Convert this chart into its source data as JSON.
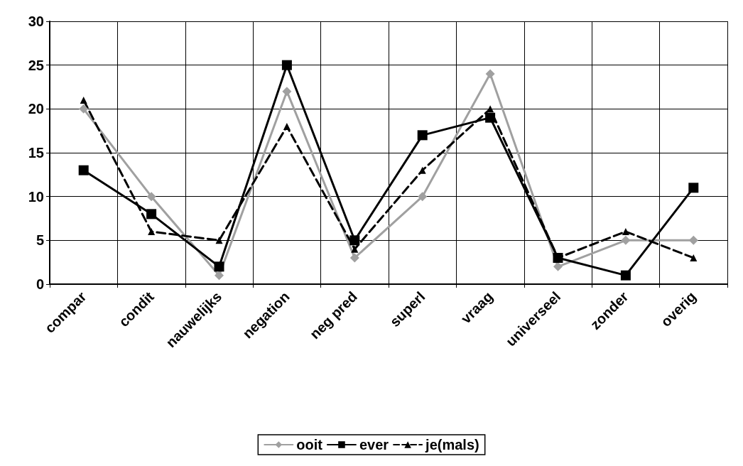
{
  "chart_data": {
    "type": "line",
    "categories": [
      "compar",
      "condit",
      "nauwelijks",
      "negation",
      "neg pred",
      "superl",
      "vraag",
      "universeel",
      "zonder",
      "overig"
    ],
    "series": [
      {
        "name": "ooit",
        "color": "#a0a0a0",
        "marker": "diamond",
        "line_style": "solid",
        "values": [
          20,
          10,
          1,
          22,
          3,
          10,
          24,
          2,
          5,
          5
        ]
      },
      {
        "name": "ever",
        "color": "#000000",
        "marker": "square",
        "line_style": "solid",
        "values": [
          13,
          8,
          2,
          25,
          5,
          17,
          19,
          3,
          1,
          11
        ]
      },
      {
        "name": "je(mals)",
        "color": "#000000",
        "marker": "triangle",
        "line_style": "dashed",
        "values": [
          21,
          6,
          5,
          18,
          4,
          13,
          20,
          3,
          6,
          3
        ]
      }
    ],
    "ylim": [
      0,
      30
    ],
    "yticks": [
      0,
      5,
      10,
      15,
      20,
      25,
      30
    ],
    "grid": true,
    "legend": "bottom"
  }
}
